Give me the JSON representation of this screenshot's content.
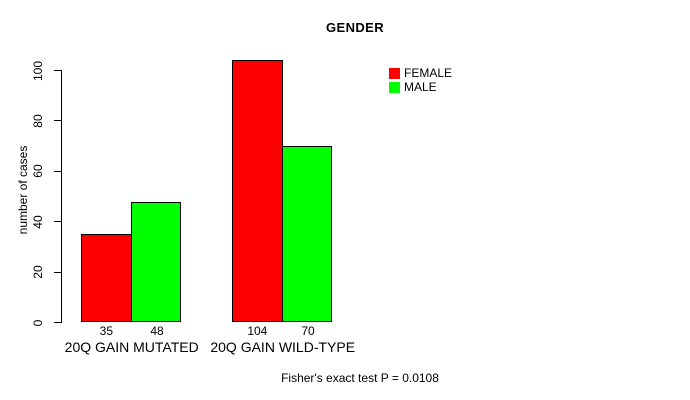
{
  "title": "GENDER",
  "chart_data": {
    "type": "bar",
    "title": "GENDER",
    "categories": [
      "20Q GAIN MUTATED",
      "20Q GAIN WILD-TYPE"
    ],
    "series": [
      {
        "name": "FEMALE",
        "color": "#ff0000",
        "values": [
          35,
          104
        ]
      },
      {
        "name": "MALE",
        "color": "#00ff00",
        "values": [
          48,
          70
        ]
      }
    ],
    "bar_value_labels": [
      [
        "35",
        "104"
      ],
      [
        "48",
        "70"
      ]
    ],
    "xlabel": "",
    "ylabel": "number of cases",
    "ylim": [
      0,
      100
    ],
    "yticks": [
      0,
      20,
      40,
      60,
      80,
      100
    ],
    "grid": false,
    "legend_position": "top-right",
    "annotation": "Fisher's exact test P = 0.0108"
  },
  "legend": {
    "items": [
      {
        "label": "FEMALE",
        "color": "#ff0000"
      },
      {
        "label": "MALE",
        "color": "#00ff00"
      }
    ]
  },
  "colors": {
    "female": "#ff0000",
    "male": "#00ff00",
    "axis": "#000000",
    "background": "#ffffff"
  }
}
